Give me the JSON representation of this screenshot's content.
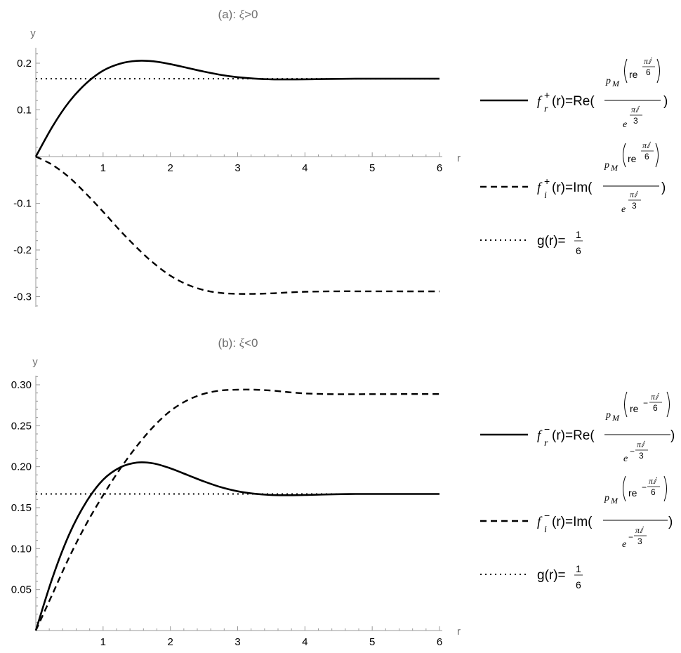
{
  "chart_data": [
    {
      "type": "line",
      "title_prefix": "(a): ",
      "title_symbol": "ξ",
      "title_suffix": ">0",
      "xlabel": "r",
      "ylabel": "y",
      "xlim": [
        0,
        6
      ],
      "ylim": [
        -0.32,
        0.23
      ],
      "x_ticks": [
        1,
        2,
        3,
        4,
        5,
        6
      ],
      "x_tick_labels": [
        "1",
        "2",
        "3",
        "4",
        "5",
        "6"
      ],
      "y_ticks": [
        0.2,
        0.1,
        -0.1,
        -0.2,
        -0.3
      ],
      "y_tick_labels": [
        "0.2",
        "0.1",
        "-0.1",
        "-0.2",
        "-0.3"
      ],
      "grid": false,
      "legend_position": "right",
      "series": [
        {
          "legend_key": "f_r_plus",
          "style": "solid",
          "x": [
            0,
            0.25,
            0.5,
            0.75,
            1.0,
            1.25,
            1.5,
            1.75,
            2.0,
            2.25,
            2.5,
            2.75,
            3.0,
            3.25,
            3.5,
            3.75,
            4.0,
            4.25,
            4.5,
            4.75,
            5.0,
            5.25,
            5.5,
            5.75,
            6.0
          ],
          "y": [
            0,
            0.065,
            0.118,
            0.157,
            0.184,
            0.199,
            0.205,
            0.204,
            0.198,
            0.19,
            0.182,
            0.175,
            0.17,
            0.167,
            0.1655,
            0.1652,
            0.1655,
            0.166,
            0.1665,
            0.1667,
            0.1667,
            0.1667,
            0.1667,
            0.1667,
            0.1667
          ]
        },
        {
          "legend_key": "f_i_plus",
          "style": "dashed",
          "x": [
            0,
            0.25,
            0.5,
            0.75,
            1.0,
            1.25,
            1.5,
            1.75,
            2.0,
            2.25,
            2.5,
            2.75,
            3.0,
            3.25,
            3.5,
            3.75,
            4.0,
            4.25,
            4.5,
            4.75,
            5.0,
            5.25,
            5.5,
            5.75,
            6.0
          ],
          "y": [
            0,
            -0.018,
            -0.045,
            -0.08,
            -0.118,
            -0.158,
            -0.195,
            -0.228,
            -0.255,
            -0.274,
            -0.286,
            -0.292,
            -0.294,
            -0.294,
            -0.293,
            -0.291,
            -0.2895,
            -0.2888,
            -0.2885,
            -0.2885,
            -0.2886,
            -0.2886,
            -0.2887,
            -0.2887,
            -0.2887
          ]
        },
        {
          "legend_key": "g",
          "style": "dotted",
          "x": [
            0,
            6
          ],
          "y": [
            0.1667,
            0.1667
          ]
        }
      ],
      "legend": {
        "f_r_plus": {
          "f": "f",
          "sub": "r",
          "sup": "+",
          "lhs": "(r)=Re(",
          "num_p": "p",
          "num_p_sub": "M",
          "num_re": "re",
          "num_exp_pi": "πⅈ",
          "num_exp_den": "6",
          "den_e": "e",
          "den_exp_pi": "πⅈ",
          "den_exp_den": "3",
          "close": ")"
        },
        "f_i_plus": {
          "f": "f",
          "sub": "i",
          "sup": "+",
          "lhs": "(r)=Im(",
          "num_p": "p",
          "num_p_sub": "M",
          "num_re": "re",
          "num_exp_pi": "πⅈ",
          "num_exp_den": "6",
          "den_e": "e",
          "den_exp_pi": "πⅈ",
          "den_exp_den": "3",
          "close": ")"
        },
        "g": {
          "lhs": "g(r)=",
          "num": "1",
          "den": "6"
        }
      }
    },
    {
      "type": "line",
      "title_prefix": "(b): ",
      "title_symbol": "ξ",
      "title_suffix": "<0",
      "xlabel": "r",
      "ylabel": "y",
      "xlim": [
        0,
        6
      ],
      "ylim": [
        0,
        0.31
      ],
      "x_ticks": [
        1,
        2,
        3,
        4,
        5,
        6
      ],
      "x_tick_labels": [
        "1",
        "2",
        "3",
        "4",
        "5",
        "6"
      ],
      "y_ticks": [
        0.05,
        0.1,
        0.15,
        0.2,
        0.25,
        0.3
      ],
      "y_tick_labels": [
        "0.05",
        "0.10",
        "0.15",
        "0.20",
        "0.25",
        "0.30"
      ],
      "grid": false,
      "legend_position": "right",
      "series": [
        {
          "legend_key": "f_r_minus",
          "style": "solid",
          "x": [
            0,
            0.25,
            0.5,
            0.75,
            1.0,
            1.25,
            1.5,
            1.75,
            2.0,
            2.25,
            2.5,
            2.75,
            3.0,
            3.25,
            3.5,
            3.75,
            4.0,
            4.25,
            4.5,
            4.75,
            5.0,
            5.25,
            5.5,
            5.75,
            6.0
          ],
          "y": [
            0,
            0.065,
            0.118,
            0.157,
            0.184,
            0.199,
            0.205,
            0.204,
            0.198,
            0.19,
            0.182,
            0.175,
            0.17,
            0.167,
            0.1655,
            0.1652,
            0.1655,
            0.166,
            0.1665,
            0.1667,
            0.1667,
            0.1667,
            0.1667,
            0.1667,
            0.1667
          ]
        },
        {
          "legend_key": "f_i_minus",
          "style": "dashed",
          "x": [
            0,
            0.25,
            0.5,
            0.75,
            1.0,
            1.25,
            1.5,
            1.75,
            2.0,
            2.25,
            2.5,
            2.75,
            3.0,
            3.25,
            3.5,
            3.75,
            4.0,
            4.25,
            4.5,
            4.75,
            5.0,
            5.25,
            5.5,
            5.75,
            6.0
          ],
          "y": [
            0,
            0.045,
            0.09,
            0.13,
            0.165,
            0.197,
            0.225,
            0.249,
            0.268,
            0.281,
            0.289,
            0.293,
            0.294,
            0.294,
            0.293,
            0.291,
            0.2895,
            0.2888,
            0.2885,
            0.2885,
            0.2886,
            0.2886,
            0.2887,
            0.2887,
            0.2887
          ]
        },
        {
          "legend_key": "g",
          "style": "dotted",
          "x": [
            0,
            6
          ],
          "y": [
            0.1667,
            0.1667
          ]
        }
      ],
      "legend": {
        "f_r_minus": {
          "f": "f",
          "sub": "r",
          "sup": "−",
          "lhs": "(r)=Re(",
          "num_p": "p",
          "num_p_sub": "M",
          "num_re": "re",
          "num_exp_sign": "−",
          "num_exp_pi": "πⅈ",
          "num_exp_den": "6",
          "den_e": "e",
          "den_exp_sign": "−",
          "den_exp_pi": "πⅈ",
          "den_exp_den": "3",
          "close": ")"
        },
        "f_i_minus": {
          "f": "f",
          "sub": "i",
          "sup": "−",
          "lhs": "(r)=Im(",
          "num_p": "p",
          "num_p_sub": "M",
          "num_re": "re",
          "num_exp_sign": "−",
          "num_exp_pi": "πⅈ",
          "num_exp_den": "6",
          "den_e": "e",
          "den_exp_sign": "−",
          "den_exp_pi": "πⅈ",
          "den_exp_den": "3",
          "close": ")"
        },
        "g": {
          "lhs": "g(r)=",
          "num": "1",
          "den": "6"
        }
      }
    }
  ]
}
